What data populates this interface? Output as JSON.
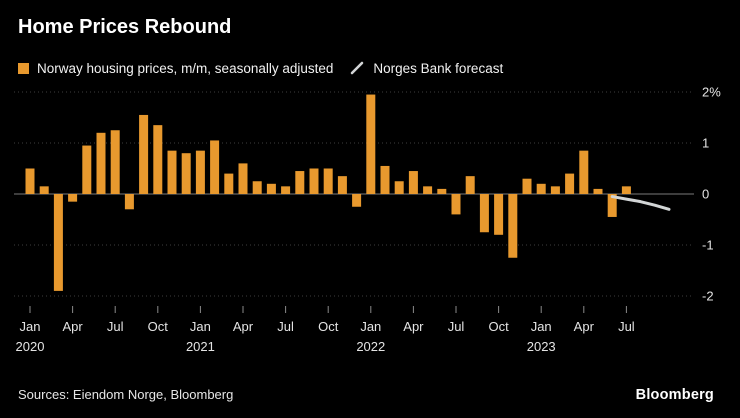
{
  "title": "Home Prices Rebound",
  "legend": {
    "series1": "Norway housing prices, m/m, seasonally adjusted",
    "series2": "Norges Bank forecast"
  },
  "footer": {
    "sources": "Sources: Eiendom Norge, Bloomberg",
    "brand": "Bloomberg"
  },
  "colors": {
    "background": "#000000",
    "bar": "#E8992E",
    "forecast": "#D2D5D6",
    "grid": "#3E3E3E",
    "zero_line": "#7A7A7A",
    "tick": "#8A8A8A",
    "axis_text": "#E4E4E4",
    "text": "#FFFFFF"
  },
  "chart_data": {
    "type": "bar",
    "title": "Home Prices Rebound",
    "unit": "%",
    "frequency": "monthly",
    "legend_position": "top-left",
    "grid": "horizontal-dotted",
    "ylim": [
      -2,
      2
    ],
    "series_name": "Norway housing prices, m/m, seasonally adjusted",
    "months": [
      "2020-01",
      "2020-02",
      "2020-03",
      "2020-04",
      "2020-05",
      "2020-06",
      "2020-07",
      "2020-08",
      "2020-09",
      "2020-10",
      "2020-11",
      "2020-12",
      "2021-01",
      "2021-02",
      "2021-03",
      "2021-04",
      "2021-05",
      "2021-06",
      "2021-07",
      "2021-08",
      "2021-09",
      "2021-10",
      "2021-11",
      "2021-12",
      "2022-01",
      "2022-02",
      "2022-03",
      "2022-04",
      "2022-05",
      "2022-06",
      "2022-07",
      "2022-08",
      "2022-09",
      "2022-10",
      "2022-11",
      "2022-12",
      "2023-01",
      "2023-02",
      "2023-03",
      "2023-04",
      "2023-05",
      "2023-06",
      "2023-07"
    ],
    "values": [
      0.5,
      0.15,
      -1.9,
      -0.15,
      0.95,
      1.2,
      1.25,
      -0.3,
      1.55,
      1.35,
      0.85,
      0.8,
      0.85,
      1.05,
      0.4,
      0.6,
      0.25,
      0.2,
      0.15,
      0.45,
      0.5,
      0.5,
      0.35,
      -0.25,
      1.95,
      0.55,
      0.25,
      0.45,
      0.15,
      0.1,
      -0.4,
      0.35,
      -0.75,
      -0.8,
      -1.25,
      0.3,
      0.2,
      0.15,
      0.4,
      0.85,
      0.1,
      -0.45,
      0.15
    ],
    "forecast": {
      "name": "Norges Bank forecast",
      "start_index": 41,
      "months": [
        "2023-06",
        "2023-07",
        "2023-08",
        "2023-09",
        "2023-10"
      ],
      "values": [
        -0.05,
        -0.1,
        -0.15,
        -0.22,
        -0.3
      ]
    },
    "yticks": [
      {
        "v": 2,
        "label": "2%"
      },
      {
        "v": 1,
        "label": "1"
      },
      {
        "v": 0,
        "label": "0"
      },
      {
        "v": -1,
        "label": "-1"
      },
      {
        "v": -2,
        "label": "-2"
      }
    ],
    "xticks": [
      {
        "index": 0,
        "month": "Jan",
        "year": "2020"
      },
      {
        "index": 3,
        "month": "Apr"
      },
      {
        "index": 6,
        "month": "Jul"
      },
      {
        "index": 9,
        "month": "Oct"
      },
      {
        "index": 12,
        "month": "Jan",
        "year": "2021"
      },
      {
        "index": 15,
        "month": "Apr"
      },
      {
        "index": 18,
        "month": "Jul"
      },
      {
        "index": 21,
        "month": "Oct"
      },
      {
        "index": 24,
        "month": "Jan",
        "year": "2022"
      },
      {
        "index": 27,
        "month": "Apr"
      },
      {
        "index": 30,
        "month": "Jul"
      },
      {
        "index": 33,
        "month": "Oct"
      },
      {
        "index": 36,
        "month": "Jan",
        "year": "2023"
      },
      {
        "index": 39,
        "month": "Apr"
      },
      {
        "index": 42,
        "month": "Jul"
      }
    ]
  }
}
